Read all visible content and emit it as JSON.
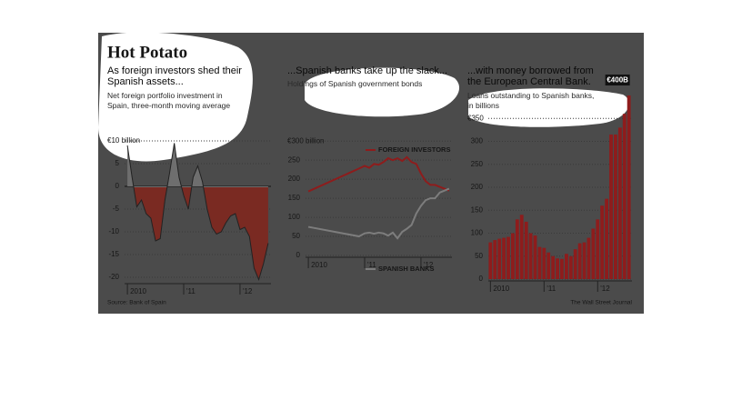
{
  "title": "Hot Potato",
  "chart_data": [
    {
      "type": "area",
      "title": "As foreign investors shed their Spanish assets...",
      "subtitle": "Net foreign portfolio investment in Spain, three-month moving average",
      "source": "Source: Bank of Spain",
      "x": [
        2010.0,
        2010.083,
        2010.167,
        2010.25,
        2010.333,
        2010.417,
        2010.5,
        2010.583,
        2010.667,
        2010.75,
        2010.833,
        2010.917,
        2011.0,
        2011.083,
        2011.167,
        2011.25,
        2011.333,
        2011.417,
        2011.5,
        2011.583,
        2011.667,
        2011.75,
        2011.833,
        2011.917,
        2012.0,
        2012.083,
        2012.167,
        2012.25,
        2012.333,
        2012.417,
        2012.5
      ],
      "values": [
        9,
        2,
        -4.5,
        -3,
        -6,
        -7,
        -12,
        -11.5,
        -3,
        3,
        9.5,
        2,
        -2,
        -5,
        2,
        4.5,
        1,
        -5,
        -9,
        -10.5,
        -10,
        -8,
        -6.5,
        -6,
        -9.5,
        -9,
        -11,
        -18,
        -20.5,
        -17,
        -12.5
      ],
      "colors": {
        "positive": "#6e6e6e",
        "negative": "#7a2a22"
      },
      "xlim": [
        2009.95,
        2012.55
      ],
      "xticks": [
        {
          "value": 2010,
          "label": "2010"
        },
        {
          "value": 2011,
          "label": "'11"
        },
        {
          "value": 2012,
          "label": "'12"
        }
      ],
      "ylim": [
        -21,
        11
      ],
      "yticks": [
        {
          "value": 10,
          "label": "€10 billion"
        },
        5,
        0,
        -5,
        -10,
        -15,
        -20
      ],
      "grid": true
    },
    {
      "type": "line",
      "title": "...Spanish banks take up the slack...",
      "subtitle": "Holdings of Spanish government bonds",
      "x": [
        2010.0,
        2010.9,
        2011.0,
        2011.083,
        2011.167,
        2011.25,
        2011.333,
        2011.417,
        2011.5,
        2011.583,
        2011.667,
        2011.75,
        2011.833,
        2011.917,
        2012.0,
        2012.083,
        2012.167,
        2012.25,
        2012.333,
        2012.417,
        2012.5
      ],
      "series": [
        {
          "name": "FOREIGN INVESTORS",
          "color": "#8e1c1c",
          "values": [
            168,
            228,
            235,
            230,
            240,
            238,
            245,
            255,
            250,
            255,
            248,
            258,
            245,
            240,
            215,
            195,
            185,
            185,
            180,
            175,
            170
          ]
        },
        {
          "name": "SPANISH BANKS",
          "color": "#7d7d7d",
          "values": [
            75,
            50,
            58,
            60,
            57,
            60,
            58,
            52,
            60,
            45,
            62,
            70,
            80,
            110,
            130,
            145,
            150,
            150,
            165,
            170,
            175
          ]
        }
      ],
      "xlim": [
        2009.95,
        2012.55
      ],
      "xticks": [
        {
          "value": 2010,
          "label": "2010"
        },
        {
          "value": 2011,
          "label": "'11"
        },
        {
          "value": 2012,
          "label": "'12"
        }
      ],
      "ylim": [
        0,
        310
      ],
      "yticks": [
        {
          "value": 300,
          "label": "€300 billion"
        },
        250,
        200,
        150,
        100,
        50,
        0
      ],
      "grid": true
    },
    {
      "type": "bar",
      "title": "...with money borrowed from the European Central Bank.",
      "subtitle": "Loans outstanding to Spanish banks, in billions",
      "source": "The Wall Street Journal",
      "annotation": "€400B",
      "x": [
        2010.0,
        2010.083,
        2010.167,
        2010.25,
        2010.333,
        2010.417,
        2010.5,
        2010.583,
        2010.667,
        2010.75,
        2010.833,
        2010.917,
        2011.0,
        2011.083,
        2011.167,
        2011.25,
        2011.333,
        2011.417,
        2011.5,
        2011.583,
        2011.667,
        2011.75,
        2011.833,
        2011.917,
        2012.0,
        2012.083,
        2012.167,
        2012.25,
        2012.333,
        2012.417,
        2012.5,
        2012.583
      ],
      "values": [
        80,
        85,
        88,
        90,
        92,
        100,
        130,
        140,
        125,
        100,
        95,
        70,
        68,
        58,
        50,
        45,
        44,
        55,
        50,
        65,
        78,
        80,
        90,
        110,
        130,
        160,
        175,
        315,
        315,
        330,
        360,
        400
      ],
      "color": "#8e1c1c",
      "xlim": [
        2009.96,
        2012.64
      ],
      "xticks": [
        {
          "value": 2010,
          "label": "2010"
        },
        {
          "value": 2011,
          "label": "'11"
        },
        {
          "value": 2012,
          "label": "'12"
        }
      ],
      "ylim": [
        0,
        410
      ],
      "yticks": [
        {
          "value": 350,
          "label": "€350"
        },
        300,
        250,
        200,
        150,
        100,
        50,
        0
      ],
      "grid": true
    }
  ]
}
